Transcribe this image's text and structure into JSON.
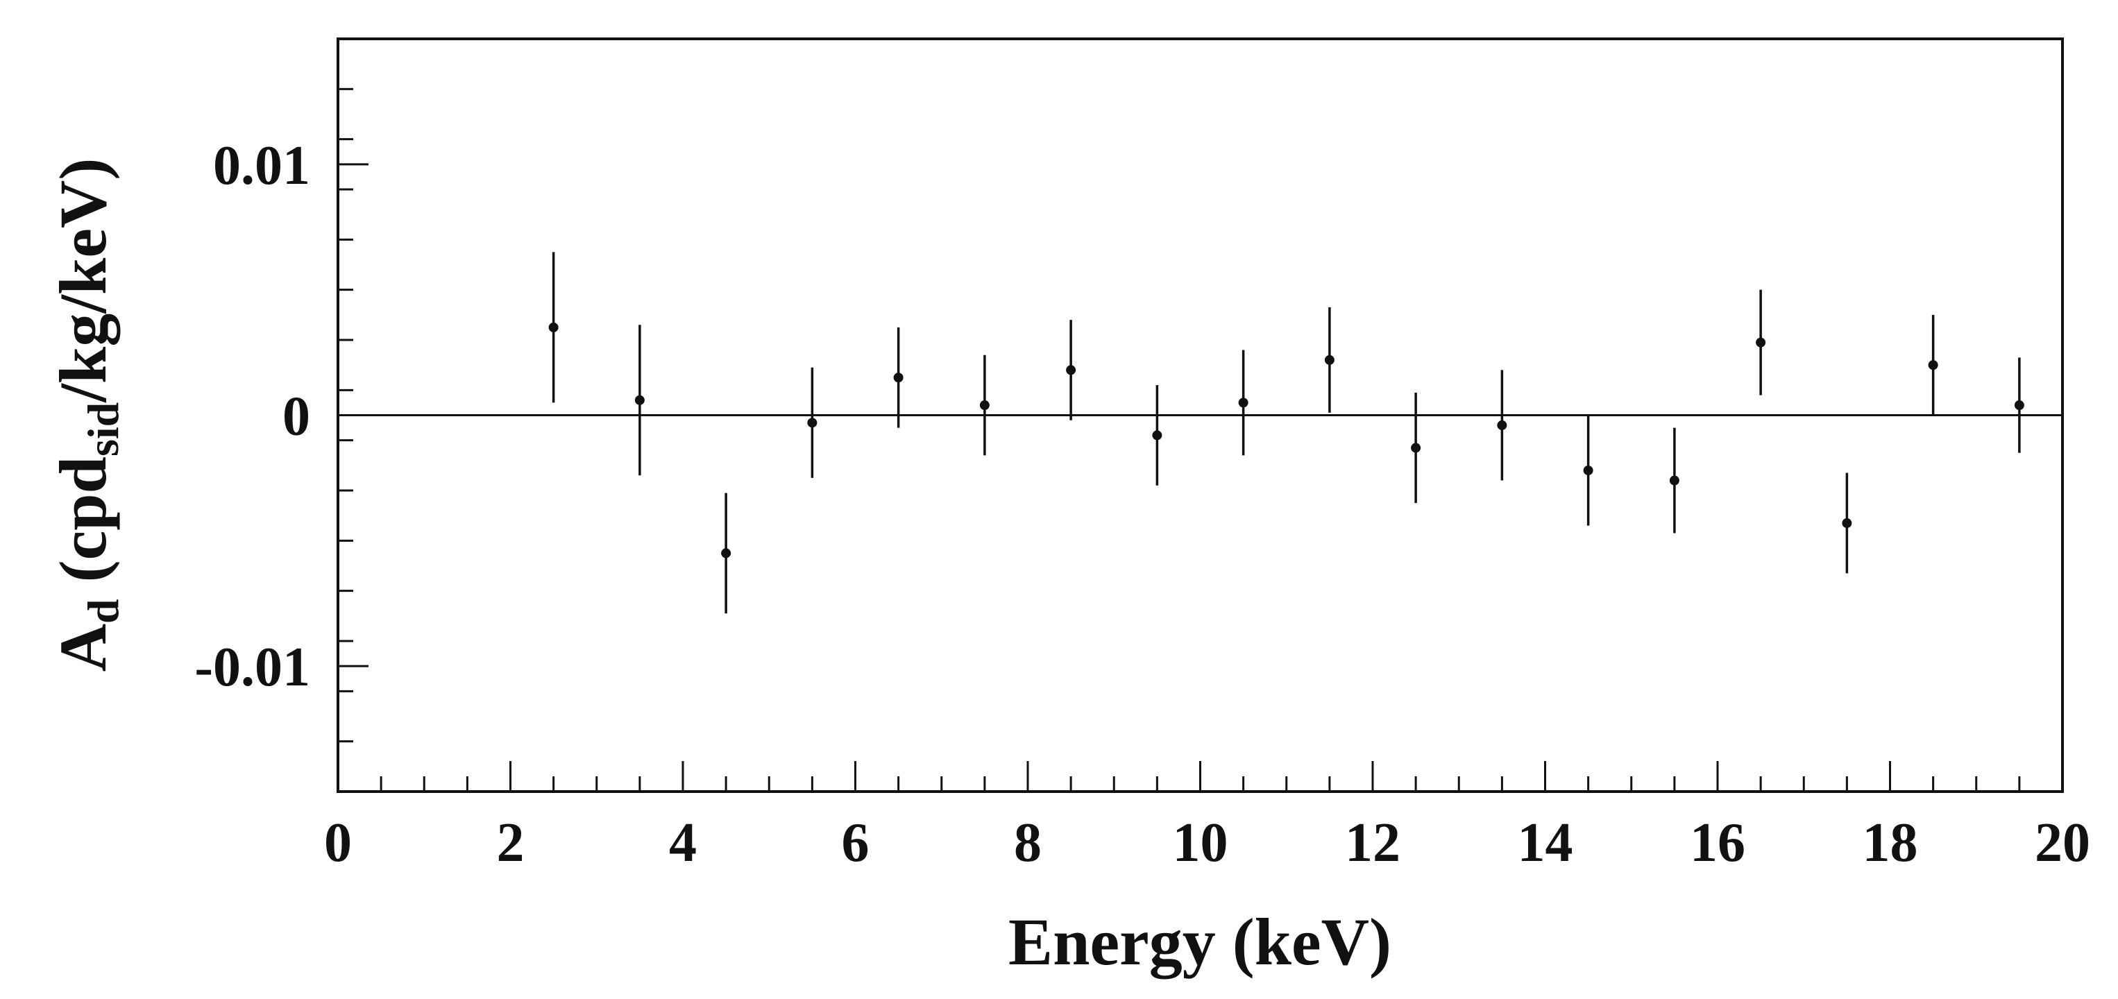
{
  "chart_data": {
    "type": "scatter",
    "title": "",
    "xlabel": "Energy (keV)",
    "ylabel": {
      "main": "A",
      "main_sub": "d",
      "open": " (cpd",
      "open_sub": "sid",
      "close": "/kg/keV)"
    },
    "xlim": [
      0,
      20
    ],
    "ylim": [
      -0.015,
      0.015
    ],
    "x_ticks": [
      {
        "value": 0,
        "label": "0"
      },
      {
        "value": 2,
        "label": "2"
      },
      {
        "value": 4,
        "label": "4"
      },
      {
        "value": 6,
        "label": "6"
      },
      {
        "value": 8,
        "label": "8"
      },
      {
        "value": 10,
        "label": "10"
      },
      {
        "value": 12,
        "label": "12"
      },
      {
        "value": 14,
        "label": "14"
      },
      {
        "value": 16,
        "label": "16"
      },
      {
        "value": 18,
        "label": "18"
      },
      {
        "value": 20,
        "label": "20"
      }
    ],
    "y_ticks": [
      {
        "value": 0.01,
        "label": "0.01"
      },
      {
        "value": 0,
        "label": "0"
      },
      {
        "value": -0.01,
        "label": "-0.01"
      }
    ],
    "x_minor_step": 0.5,
    "y_minor_step": 0.002,
    "reference_line_y": 0,
    "grid": false,
    "legend": "none",
    "marker_color": "#111111",
    "line_color": "#111111",
    "points": [
      {
        "x": 2.5,
        "y": 0.0035,
        "err": 0.003
      },
      {
        "x": 3.5,
        "y": 0.0006,
        "err": 0.003
      },
      {
        "x": 4.5,
        "y": -0.0055,
        "err": 0.0024
      },
      {
        "x": 5.5,
        "y": -0.0003,
        "err": 0.0022
      },
      {
        "x": 6.5,
        "y": 0.0015,
        "err": 0.002
      },
      {
        "x": 7.5,
        "y": 0.0004,
        "err": 0.002
      },
      {
        "x": 8.5,
        "y": 0.0018,
        "err": 0.002
      },
      {
        "x": 9.5,
        "y": -0.0008,
        "err": 0.002
      },
      {
        "x": 10.5,
        "y": 0.0005,
        "err": 0.0021
      },
      {
        "x": 11.5,
        "y": 0.0022,
        "err": 0.0021
      },
      {
        "x": 12.5,
        "y": -0.0013,
        "err": 0.0022
      },
      {
        "x": 13.5,
        "y": -0.0004,
        "err": 0.0022
      },
      {
        "x": 14.5,
        "y": -0.0022,
        "err": 0.0022
      },
      {
        "x": 15.5,
        "y": -0.0026,
        "err": 0.0021
      },
      {
        "x": 16.5,
        "y": 0.0029,
        "err": 0.0021
      },
      {
        "x": 17.5,
        "y": -0.0043,
        "err": 0.002
      },
      {
        "x": 18.5,
        "y": 0.002,
        "err": 0.002
      },
      {
        "x": 19.5,
        "y": 0.0004,
        "err": 0.0019
      }
    ]
  }
}
